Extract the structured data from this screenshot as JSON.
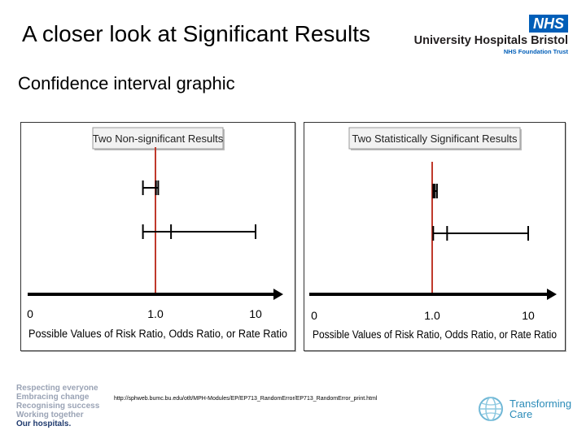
{
  "slide": {
    "title": "A closer look at Significant Results",
    "subtitle": "Confidence interval graphic"
  },
  "logo": {
    "badge": "NHS",
    "org_name": "University Hospitals Bristol",
    "org_sub": "NHS Foundation Trust"
  },
  "colors": {
    "nhs_blue": "#005EB8",
    "reference_line": "#c0392b",
    "axis": "#000000",
    "interval": "#000000"
  },
  "panels": [
    {
      "header": "Two Non-significant Results",
      "reference_value": 1.0,
      "tick_labels": [
        "0",
        "1.0",
        "10"
      ],
      "axis_label": "Possible Values of Risk Ratio, Odds Ratio, or Rate Ratio",
      "intervals": [
        {
          "lower": 0.9,
          "point": 1.05,
          "upper": 1.25
        },
        {
          "lower": 0.9,
          "point": 2.4,
          "upper": 10
        }
      ]
    },
    {
      "header": "Two Statistically Significant Results",
      "reference_value": 1.0,
      "tick_labels": [
        "0",
        "1.0",
        "10"
      ],
      "axis_label": "Possible Values of Risk Ratio, Odds Ratio, or Rate Ratio",
      "intervals": [
        {
          "lower": 1.1,
          "point": 1.25,
          "upper": 1.45
        },
        {
          "lower": 1.1,
          "point": 2.4,
          "upper": 10
        }
      ]
    }
  ],
  "footer": {
    "tagline": [
      "Respecting everyone",
      "Embracing change",
      "Recognising success",
      "Working together"
    ],
    "tagline_strong": "Our hospitals.",
    "url": "http://sphweb.bumc.bu.edu/otlt/MPH-Modules/EP/EP713_RandomError/EP713_RandomError_print.html",
    "tc_line1": "Transforming",
    "tc_line2": "Care"
  }
}
